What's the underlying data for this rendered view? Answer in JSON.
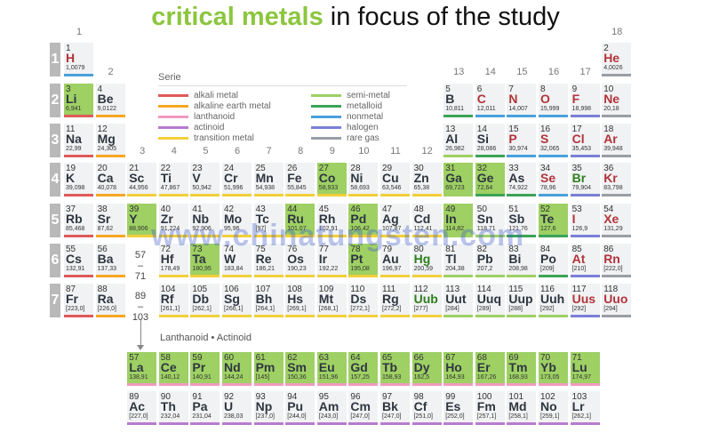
{
  "title": {
    "highlight": "critical metals",
    "rest": " in focus of the study"
  },
  "groups": [
    "1",
    "2",
    "3",
    "4",
    "5",
    "6",
    "7",
    "8",
    "9",
    "10",
    "11",
    "12",
    "13",
    "14",
    "15",
    "16",
    "17",
    "18"
  ],
  "periods": [
    "1",
    "2",
    "3",
    "4",
    "5",
    "6",
    "7"
  ],
  "legend": {
    "title": "Serie",
    "items": [
      {
        "label": "alkali metal",
        "color": "#e05a5a"
      },
      {
        "label": "alkaline earth metal",
        "color": "#f6a623"
      },
      {
        "label": "lanthanoid",
        "color": "#f19ac0"
      },
      {
        "label": "actinoid",
        "color": "#b77bcf"
      },
      {
        "label": "transition metal",
        "color": "#f2cf3a"
      },
      {
        "label": "semi-metal",
        "color": "#9ed064"
      },
      {
        "label": "metalloid",
        "color": "#3ca357"
      },
      {
        "label": "nonmetal",
        "color": "#4ba0dc"
      },
      {
        "label": "halogen",
        "color": "#7b7fd6"
      },
      {
        "label": "rare gas",
        "color": "#9a9ea6"
      }
    ]
  },
  "ranges": {
    "lanthanide": "57\n–\n71",
    "actinide": "89\n–\n103"
  },
  "sublabel": "Lanthanoid  •  Actinoid",
  "watermark": "www.chinatungsten.com",
  "elements": [
    {
      "n": "1",
      "s": "H",
      "m": "1,0079",
      "g": 1,
      "p": 1,
      "cat": "nonmetal"
    },
    {
      "n": "2",
      "s": "He",
      "m": "4,0026",
      "g": 18,
      "p": 1,
      "cat": "rare gas"
    },
    {
      "n": "3",
      "s": "Li",
      "m": "6,941",
      "g": 1,
      "p": 2,
      "cat": "alkali metal",
      "crit": true
    },
    {
      "n": "4",
      "s": "Be",
      "m": "9,0122",
      "g": 2,
      "p": 2,
      "cat": "alkaline earth metal"
    },
    {
      "n": "5",
      "s": "B",
      "m": "10,811",
      "g": 13,
      "p": 2,
      "cat": "metalloid"
    },
    {
      "n": "6",
      "s": "C",
      "m": "12,011",
      "g": 14,
      "p": 2,
      "cat": "nonmetal"
    },
    {
      "n": "7",
      "s": "N",
      "m": "14,007",
      "g": 15,
      "p": 2,
      "cat": "nonmetal"
    },
    {
      "n": "8",
      "s": "O",
      "m": "15,999",
      "g": 16,
      "p": 2,
      "cat": "nonmetal"
    },
    {
      "n": "9",
      "s": "F",
      "m": "18,998",
      "g": 17,
      "p": 2,
      "cat": "halogen"
    },
    {
      "n": "10",
      "s": "Ne",
      "m": "20,18",
      "g": 18,
      "p": 2,
      "cat": "rare gas"
    },
    {
      "n": "11",
      "s": "Na",
      "m": "22,99",
      "g": 1,
      "p": 3,
      "cat": "alkali metal"
    },
    {
      "n": "12",
      "s": "Mg",
      "m": "24,305",
      "g": 2,
      "p": 3,
      "cat": "alkaline earth metal"
    },
    {
      "n": "13",
      "s": "Al",
      "m": "26,982",
      "g": 13,
      "p": 3,
      "cat": "semi-metal"
    },
    {
      "n": "14",
      "s": "Si",
      "m": "28,086",
      "g": 14,
      "p": 3,
      "cat": "metalloid"
    },
    {
      "n": "15",
      "s": "P",
      "m": "30,974",
      "g": 15,
      "p": 3,
      "cat": "nonmetal"
    },
    {
      "n": "16",
      "s": "S",
      "m": "32,065",
      "g": 16,
      "p": 3,
      "cat": "nonmetal"
    },
    {
      "n": "17",
      "s": "Cl",
      "m": "35,453",
      "g": 17,
      "p": 3,
      "cat": "halogen"
    },
    {
      "n": "18",
      "s": "Ar",
      "m": "39,948",
      "g": 18,
      "p": 3,
      "cat": "rare gas"
    },
    {
      "n": "19",
      "s": "K",
      "m": "39,098",
      "g": 1,
      "p": 4,
      "cat": "alkali metal"
    },
    {
      "n": "20",
      "s": "Ca",
      "m": "40,078",
      "g": 2,
      "p": 4,
      "cat": "alkaline earth metal"
    },
    {
      "n": "21",
      "s": "Sc",
      "m": "44,956",
      "g": 3,
      "p": 4,
      "cat": "transition metal"
    },
    {
      "n": "22",
      "s": "Ti",
      "m": "47,867",
      "g": 4,
      "p": 4,
      "cat": "transition metal"
    },
    {
      "n": "23",
      "s": "V",
      "m": "50,942",
      "g": 5,
      "p": 4,
      "cat": "transition metal"
    },
    {
      "n": "24",
      "s": "Cr",
      "m": "51,996",
      "g": 6,
      "p": 4,
      "cat": "transition metal"
    },
    {
      "n": "25",
      "s": "Mn",
      "m": "54,938",
      "g": 7,
      "p": 4,
      "cat": "transition metal"
    },
    {
      "n": "26",
      "s": "Fe",
      "m": "55,845",
      "g": 8,
      "p": 4,
      "cat": "transition metal"
    },
    {
      "n": "27",
      "s": "Co",
      "m": "58,933",
      "g": 9,
      "p": 4,
      "cat": "transition metal",
      "crit": true
    },
    {
      "n": "28",
      "s": "Ni",
      "m": "58,693",
      "g": 10,
      "p": 4,
      "cat": "transition metal"
    },
    {
      "n": "29",
      "s": "Cu",
      "m": "63,546",
      "g": 11,
      "p": 4,
      "cat": "transition metal"
    },
    {
      "n": "30",
      "s": "Zn",
      "m": "65,38",
      "g": 12,
      "p": 4,
      "cat": "transition metal"
    },
    {
      "n": "31",
      "s": "Ga",
      "m": "69,723",
      "g": 13,
      "p": 4,
      "cat": "semi-metal",
      "crit": true
    },
    {
      "n": "32",
      "s": "Ge",
      "m": "72,64",
      "g": 14,
      "p": 4,
      "cat": "metalloid",
      "crit": true
    },
    {
      "n": "33",
      "s": "As",
      "m": "74,922",
      "g": 15,
      "p": 4,
      "cat": "metalloid"
    },
    {
      "n": "34",
      "s": "Se",
      "m": "78,96",
      "g": 16,
      "p": 4,
      "cat": "nonmetal"
    },
    {
      "n": "35",
      "s": "Br",
      "m": "79,904",
      "g": 17,
      "p": 4,
      "cat": "halogen"
    },
    {
      "n": "36",
      "s": "Kr",
      "m": "83,798",
      "g": 18,
      "p": 4,
      "cat": "rare gas"
    },
    {
      "n": "37",
      "s": "Rb",
      "m": "85,468",
      "g": 1,
      "p": 5,
      "cat": "alkali metal"
    },
    {
      "n": "38",
      "s": "Sr",
      "m": "87,62",
      "g": 2,
      "p": 5,
      "cat": "alkaline earth metal"
    },
    {
      "n": "39",
      "s": "Y",
      "m": "88,906",
      "g": 3,
      "p": 5,
      "cat": "transition metal",
      "crit": true
    },
    {
      "n": "40",
      "s": "Zr",
      "m": "91,224",
      "g": 4,
      "p": 5,
      "cat": "transition metal"
    },
    {
      "n": "41",
      "s": "Nb",
      "m": "92,906",
      "g": 5,
      "p": 5,
      "cat": "transition metal"
    },
    {
      "n": "42",
      "s": "Mo",
      "m": "95,96",
      "g": 6,
      "p": 5,
      "cat": "transition metal"
    },
    {
      "n": "43",
      "s": "Tc",
      "m": "[97]",
      "g": 7,
      "p": 5,
      "cat": "transition metal"
    },
    {
      "n": "44",
      "s": "Ru",
      "m": "101,07",
      "g": 8,
      "p": 5,
      "cat": "transition metal",
      "crit": true
    },
    {
      "n": "45",
      "s": "Rh",
      "m": "102,91",
      "g": 9,
      "p": 5,
      "cat": "transition metal"
    },
    {
      "n": "46",
      "s": "Pd",
      "m": "106,42",
      "g": 10,
      "p": 5,
      "cat": "transition metal",
      "crit": true
    },
    {
      "n": "47",
      "s": "Ag",
      "m": "107,87",
      "g": 11,
      "p": 5,
      "cat": "transition metal"
    },
    {
      "n": "48",
      "s": "Cd",
      "m": "112,41",
      "g": 12,
      "p": 5,
      "cat": "transition metal"
    },
    {
      "n": "49",
      "s": "In",
      "m": "114,82",
      "g": 13,
      "p": 5,
      "cat": "semi-metal",
      "crit": true
    },
    {
      "n": "50",
      "s": "Sn",
      "m": "118,71",
      "g": 14,
      "p": 5,
      "cat": "semi-metal"
    },
    {
      "n": "51",
      "s": "Sb",
      "m": "121,76",
      "g": 15,
      "p": 5,
      "cat": "metalloid"
    },
    {
      "n": "52",
      "s": "Te",
      "m": "127,6",
      "g": 16,
      "p": 5,
      "cat": "metalloid",
      "crit": true
    },
    {
      "n": "53",
      "s": "I",
      "m": "126,9",
      "g": 17,
      "p": 5,
      "cat": "halogen"
    },
    {
      "n": "54",
      "s": "Xe",
      "m": "131,29",
      "g": 18,
      "p": 5,
      "cat": "rare gas"
    },
    {
      "n": "55",
      "s": "Cs",
      "m": "132,91",
      "g": 1,
      "p": 6,
      "cat": "alkali metal"
    },
    {
      "n": "56",
      "s": "Ba",
      "m": "137,33",
      "g": 2,
      "p": 6,
      "cat": "alkaline earth metal"
    },
    {
      "n": "72",
      "s": "Hf",
      "m": "178,49",
      "g": 4,
      "p": 6,
      "cat": "transition metal"
    },
    {
      "n": "73",
      "s": "Ta",
      "m": "180,95",
      "g": 5,
      "p": 6,
      "cat": "transition metal",
      "crit": true
    },
    {
      "n": "74",
      "s": "W",
      "m": "183,84",
      "g": 6,
      "p": 6,
      "cat": "transition metal"
    },
    {
      "n": "75",
      "s": "Re",
      "m": "186,21",
      "g": 7,
      "p": 6,
      "cat": "transition metal"
    },
    {
      "n": "76",
      "s": "Os",
      "m": "190,23",
      "g": 8,
      "p": 6,
      "cat": "transition metal"
    },
    {
      "n": "77",
      "s": "Ir",
      "m": "192,22",
      "g": 9,
      "p": 6,
      "cat": "transition metal"
    },
    {
      "n": "78",
      "s": "Pt",
      "m": "195,08",
      "g": 10,
      "p": 6,
      "cat": "transition metal",
      "crit": true
    },
    {
      "n": "79",
      "s": "Au",
      "m": "196,97",
      "g": 11,
      "p": 6,
      "cat": "transition metal"
    },
    {
      "n": "80",
      "s": "Hg",
      "m": "200,59",
      "g": 12,
      "p": 6,
      "cat": "transition metal"
    },
    {
      "n": "81",
      "s": "Tl",
      "m": "204,38",
      "g": 13,
      "p": 6,
      "cat": "semi-metal"
    },
    {
      "n": "82",
      "s": "Pb",
      "m": "207,2",
      "g": 14,
      "p": 6,
      "cat": "semi-metal"
    },
    {
      "n": "83",
      "s": "Bi",
      "m": "208,98",
      "g": 15,
      "p": 6,
      "cat": "semi-metal"
    },
    {
      "n": "84",
      "s": "Po",
      "m": "[209]",
      "g": 16,
      "p": 6,
      "cat": "metalloid"
    },
    {
      "n": "85",
      "s": "At",
      "m": "[210]",
      "g": 17,
      "p": 6,
      "cat": "halogen"
    },
    {
      "n": "86",
      "s": "Rn",
      "m": "[222,0]",
      "g": 18,
      "p": 6,
      "cat": "rare gas"
    },
    {
      "n": "87",
      "s": "Fr",
      "m": "[223,0]",
      "g": 1,
      "p": 7,
      "cat": "alkali metal"
    },
    {
      "n": "88",
      "s": "Ra",
      "m": "[226,0]",
      "g": 2,
      "p": 7,
      "cat": "alkaline earth metal"
    },
    {
      "n": "104",
      "s": "Rf",
      "m": "[261,1]",
      "g": 4,
      "p": 7,
      "cat": "transition metal"
    },
    {
      "n": "105",
      "s": "Db",
      "m": "[262,1]",
      "g": 5,
      "p": 7,
      "cat": "transition metal"
    },
    {
      "n": "106",
      "s": "Sg",
      "m": "[266,1]",
      "g": 6,
      "p": 7,
      "cat": "transition metal"
    },
    {
      "n": "107",
      "s": "Bh",
      "m": "[264,1]",
      "g": 7,
      "p": 7,
      "cat": "transition metal"
    },
    {
      "n": "108",
      "s": "Hs",
      "m": "[269,1]",
      "g": 8,
      "p": 7,
      "cat": "transition metal"
    },
    {
      "n": "109",
      "s": "Mt",
      "m": "[268,1]",
      "g": 9,
      "p": 7,
      "cat": "transition metal"
    },
    {
      "n": "110",
      "s": "Ds",
      "m": "[272,1]",
      "g": 10,
      "p": 7,
      "cat": "transition metal"
    },
    {
      "n": "111",
      "s": "Rg",
      "m": "[272,2]",
      "g": 11,
      "p": 7,
      "cat": "transition metal"
    },
    {
      "n": "112",
      "s": "Uub",
      "m": "[277]",
      "g": 12,
      "p": 7,
      "cat": "transition metal"
    },
    {
      "n": "113",
      "s": "Uut",
      "m": "[284]",
      "g": 13,
      "p": 7,
      "cat": "semi-metal"
    },
    {
      "n": "114",
      "s": "Uuq",
      "m": "[289]",
      "g": 14,
      "p": 7,
      "cat": "semi-metal"
    },
    {
      "n": "115",
      "s": "Uup",
      "m": "[288]",
      "g": 15,
      "p": 7,
      "cat": "semi-metal"
    },
    {
      "n": "116",
      "s": "Uuh",
      "m": "[292]",
      "g": 16,
      "p": 7,
      "cat": "semi-metal"
    },
    {
      "n": "117",
      "s": "Uus",
      "m": "[292]",
      "g": 17,
      "p": 7,
      "cat": "halogen"
    },
    {
      "n": "118",
      "s": "Uuo",
      "m": "[294]",
      "g": 18,
      "p": 7,
      "cat": "rare gas"
    },
    {
      "n": "57",
      "s": "La",
      "m": "138,91",
      "g": 3,
      "p": 8,
      "cat": "lanthanoid",
      "crit": true
    },
    {
      "n": "58",
      "s": "Ce",
      "m": "140,12",
      "g": 4,
      "p": 8,
      "cat": "lanthanoid",
      "crit": true
    },
    {
      "n": "59",
      "s": "Pr",
      "m": "140,91",
      "g": 5,
      "p": 8,
      "cat": "lanthanoid",
      "crit": true
    },
    {
      "n": "60",
      "s": "Nd",
      "m": "144,24",
      "g": 6,
      "p": 8,
      "cat": "lanthanoid",
      "crit": true
    },
    {
      "n": "61",
      "s": "Pm",
      "m": "[145]",
      "g": 7,
      "p": 8,
      "cat": "lanthanoid",
      "crit": true
    },
    {
      "n": "62",
      "s": "Sm",
      "m": "150,36",
      "g": 8,
      "p": 8,
      "cat": "lanthanoid",
      "crit": true
    },
    {
      "n": "63",
      "s": "Eu",
      "m": "151,96",
      "g": 9,
      "p": 8,
      "cat": "lanthanoid",
      "crit": true
    },
    {
      "n": "64",
      "s": "Gd",
      "m": "157,25",
      "g": 10,
      "p": 8,
      "cat": "lanthanoid",
      "crit": true
    },
    {
      "n": "65",
      "s": "Tb",
      "m": "158,93",
      "g": 11,
      "p": 8,
      "cat": "lanthanoid",
      "crit": true
    },
    {
      "n": "66",
      "s": "Dy",
      "m": "162,5",
      "g": 12,
      "p": 8,
      "cat": "lanthanoid",
      "crit": true
    },
    {
      "n": "67",
      "s": "Ho",
      "m": "164,93",
      "g": 13,
      "p": 8,
      "cat": "lanthanoid",
      "crit": true
    },
    {
      "n": "68",
      "s": "Er",
      "m": "167,26",
      "g": 14,
      "p": 8,
      "cat": "lanthanoid",
      "crit": true
    },
    {
      "n": "69",
      "s": "Tm",
      "m": "168,93",
      "g": 15,
      "p": 8,
      "cat": "lanthanoid",
      "crit": true
    },
    {
      "n": "70",
      "s": "Yb",
      "m": "173,05",
      "g": 16,
      "p": 8,
      "cat": "lanthanoid",
      "crit": true
    },
    {
      "n": "71",
      "s": "Lu",
      "m": "174,97",
      "g": 17,
      "p": 8,
      "cat": "lanthanoid",
      "crit": true
    },
    {
      "n": "89",
      "s": "Ac",
      "m": "[227,0]",
      "g": 3,
      "p": 9,
      "cat": "actinoid"
    },
    {
      "n": "90",
      "s": "Th",
      "m": "232,04",
      "g": 4,
      "p": 9,
      "cat": "actinoid"
    },
    {
      "n": "91",
      "s": "Pa",
      "m": "231,04",
      "g": 5,
      "p": 9,
      "cat": "actinoid"
    },
    {
      "n": "92",
      "s": "U",
      "m": "238,03",
      "g": 6,
      "p": 9,
      "cat": "actinoid"
    },
    {
      "n": "93",
      "s": "Np",
      "m": "[237,0]",
      "g": 7,
      "p": 9,
      "cat": "actinoid"
    },
    {
      "n": "94",
      "s": "Pu",
      "m": "[244,0]",
      "g": 8,
      "p": 9,
      "cat": "actinoid"
    },
    {
      "n": "95",
      "s": "Am",
      "m": "[243,0]",
      "g": 9,
      "p": 9,
      "cat": "actinoid"
    },
    {
      "n": "96",
      "s": "Cm",
      "m": "[247,0]",
      "g": 10,
      "p": 9,
      "cat": "actinoid"
    },
    {
      "n": "97",
      "s": "Bk",
      "m": "[247,0]",
      "g": 11,
      "p": 9,
      "cat": "actinoid"
    },
    {
      "n": "98",
      "s": "Cf",
      "m": "[251,0]",
      "g": 12,
      "p": 9,
      "cat": "actinoid"
    },
    {
      "n": "99",
      "s": "Es",
      "m": "[252,0]",
      "g": 13,
      "p": 9,
      "cat": "actinoid"
    },
    {
      "n": "100",
      "s": "Fm",
      "m": "[257,1]",
      "g": 14,
      "p": 9,
      "cat": "actinoid"
    },
    {
      "n": "101",
      "s": "Md",
      "m": "[258,1]",
      "g": 15,
      "p": 9,
      "cat": "actinoid"
    },
    {
      "n": "102",
      "s": "No",
      "m": "[259,1]",
      "g": 16,
      "p": 9,
      "cat": "actinoid"
    },
    {
      "n": "103",
      "s": "Lr",
      "m": "[262,1]",
      "g": 17,
      "p": 9,
      "cat": "actinoid"
    }
  ]
}
